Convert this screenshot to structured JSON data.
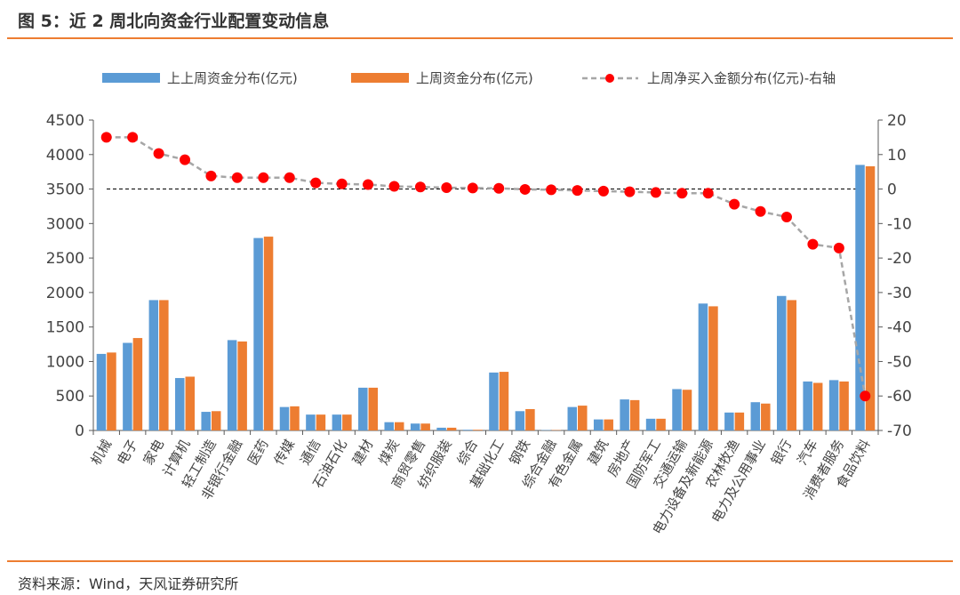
{
  "header": {
    "title": "图 5：近 2 周北向资金行业配置变动信息"
  },
  "footer": {
    "source": "资料来源：Wind，天风证券研究所"
  },
  "colors": {
    "series1": "#5b9bd5",
    "series2": "#ed7d31",
    "line": "#a6a6a6",
    "marker": "#ff0000",
    "rule": "#ed7d31"
  },
  "chart_data": {
    "type": "bar",
    "title": "",
    "xlabel": "",
    "ylabel": "",
    "ylim": [
      0,
      4500
    ],
    "y2lim": [
      -70,
      20
    ],
    "yticks": [
      "0",
      "500",
      "1000",
      "1500",
      "2000",
      "2500",
      "3000",
      "3500",
      "4000",
      "4500"
    ],
    "y2ticks": [
      "-70",
      "-60",
      "-50",
      "-40",
      "-30",
      "-20",
      "-10",
      "0",
      "10",
      "20"
    ],
    "legend_position": "top",
    "grid": false,
    "categories": [
      "机械",
      "电子",
      "家电",
      "计算机",
      "轻工制造",
      "非银行金融",
      "医药",
      "传媒",
      "通信",
      "石油石化",
      "建材",
      "煤炭",
      "商贸零售",
      "纺织服装",
      "综合",
      "基础化工",
      "钢铁",
      "综合金融",
      "有色金属",
      "建筑",
      "房地产",
      "国防军工",
      "交通运输",
      "电力设备及新能源",
      "农林牧渔",
      "电力及公用事业",
      "银行",
      "汽车",
      "消费者服务",
      "食品饮料"
    ],
    "series": [
      {
        "name": "上上周资金分布(亿元)",
        "type": "bar",
        "axis": "left",
        "values": [
          1110,
          1270,
          1890,
          760,
          270,
          1310,
          2790,
          340,
          230,
          230,
          620,
          120,
          100,
          40,
          10,
          840,
          280,
          5,
          340,
          160,
          450,
          170,
          600,
          1840,
          260,
          410,
          1950,
          710,
          730,
          3850
        ]
      },
      {
        "name": "上周资金分布(亿元)",
        "type": "bar",
        "axis": "left",
        "values": [
          1130,
          1340,
          1890,
          780,
          280,
          1290,
          2810,
          350,
          230,
          230,
          620,
          120,
          100,
          40,
          10,
          850,
          310,
          5,
          360,
          160,
          440,
          170,
          590,
          1800,
          260,
          390,
          1890,
          690,
          710,
          3830
        ]
      },
      {
        "name": "上周净买入金额分布(亿元)-右轴",
        "type": "line",
        "axis": "right",
        "values": [
          15,
          15,
          10.3,
          8.5,
          3.8,
          3.3,
          3.3,
          3.3,
          1.8,
          1.5,
          1.3,
          0.8,
          0.6,
          0.4,
          0.3,
          0.2,
          -0.1,
          -0.2,
          -0.4,
          -0.6,
          -0.8,
          -1,
          -1.2,
          -1.2,
          -4.4,
          -6.5,
          -8.1,
          -16,
          -17.1,
          -60
        ]
      }
    ]
  }
}
